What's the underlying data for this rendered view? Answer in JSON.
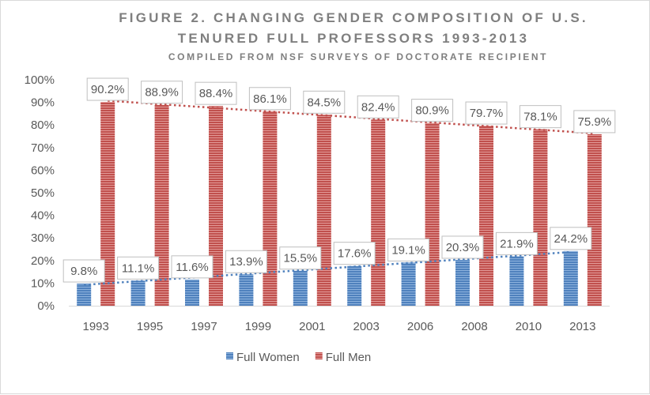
{
  "chart_data": {
    "type": "bar",
    "title": "FIGURE 2. CHANGING GENDER COMPOSITION OF U.S.",
    "title_line2": "TENURED FULL PROFESSORS 1993-2013",
    "subtitle": "COMPILED FROM NSF SURVEYS OF DOCTORATE RECIPIENT",
    "categories": [
      "1993",
      "1995",
      "1997",
      "1999",
      "2001",
      "2003",
      "2006",
      "2008",
      "2010",
      "2013"
    ],
    "series": [
      {
        "name": "Full Women",
        "color": "#4f81bd",
        "values": [
          9.8,
          11.1,
          11.6,
          13.9,
          15.5,
          17.6,
          19.1,
          20.3,
          21.9,
          24.2
        ],
        "labels": [
          "9.8%",
          "11.1%",
          "11.6%",
          "13.9%",
          "15.5%",
          "17.6%",
          "19.1%",
          "20.3%",
          "21.9%",
          "24.2%"
        ]
      },
      {
        "name": "Full Men",
        "color": "#c0504d",
        "values": [
          90.2,
          88.9,
          88.4,
          86.1,
          84.5,
          82.4,
          80.9,
          79.7,
          78.1,
          75.9
        ],
        "labels": [
          "90.2%",
          "88.9%",
          "88.4%",
          "86.1%",
          "84.5%",
          "82.4%",
          "80.9%",
          "79.7%",
          "78.1%",
          "75.9%"
        ]
      }
    ],
    "trendlines": "linear, dotted, one per series",
    "yticks": [
      "0%",
      "10%",
      "20%",
      "30%",
      "40%",
      "50%",
      "60%",
      "70%",
      "80%",
      "90%",
      "100%"
    ],
    "ylim": [
      0,
      100
    ],
    "grid": false,
    "legend_position": "bottom"
  }
}
